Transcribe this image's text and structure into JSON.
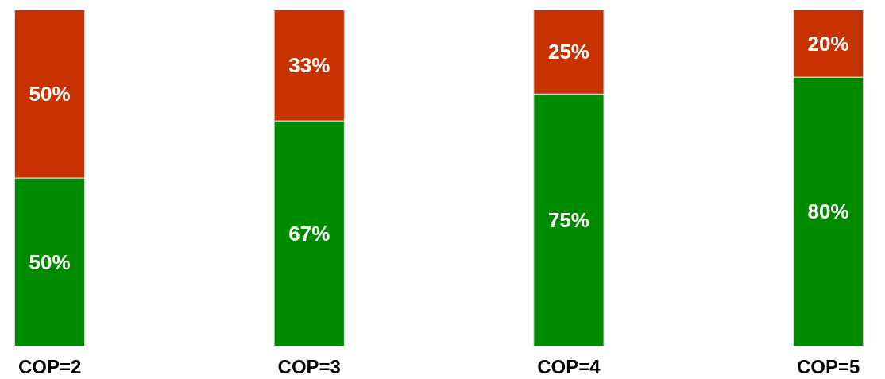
{
  "chart_data": {
    "type": "bar",
    "stacked": true,
    "categories": [
      "COP=2",
      "COP=3",
      "COP=4",
      "COP=5"
    ],
    "ylim": [
      0,
      100
    ],
    "tick_labels": "x",
    "series": [
      {
        "color": "#008a00",
        "values": [
          50,
          67,
          75,
          80
        ],
        "value_labels": [
          "50%",
          "67%",
          "75%",
          "80%"
        ]
      },
      {
        "color": "#c83200",
        "values": [
          50,
          33,
          25,
          20
        ],
        "value_labels": [
          "50%",
          "33%",
          "25%",
          "20%"
        ]
      }
    ]
  }
}
